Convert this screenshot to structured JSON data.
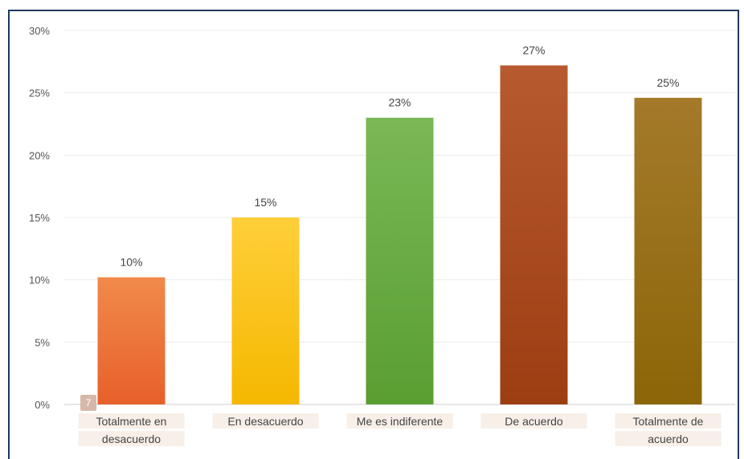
{
  "badge": "7",
  "chart_data": {
    "type": "bar",
    "title": "",
    "xlabel": "",
    "ylabel": "",
    "ylim": [
      0,
      30
    ],
    "yticks": [
      "0%",
      "5%",
      "10%",
      "15%",
      "20%",
      "25%",
      "30%"
    ],
    "grid": true,
    "categories": [
      [
        "Totalmente en",
        "desacuerdo"
      ],
      [
        "En desacuerdo"
      ],
      [
        "Me es indiferente"
      ],
      [
        "De acuerdo"
      ],
      [
        "Totalmente de",
        "acuerdo"
      ]
    ],
    "values": [
      10.2,
      15,
      23,
      27.2,
      24.6
    ],
    "data_labels": [
      "10%",
      "15%",
      "23%",
      "27%",
      "25%"
    ],
    "colors": [
      [
        "#f08a4b",
        "#e8602a"
      ],
      [
        "#ffcf3a",
        "#f5b800"
      ],
      [
        "#7ab855",
        "#5a9e32"
      ],
      [
        "#b85a30",
        "#9c3e12"
      ],
      [
        "#a47a2a",
        "#8c6508"
      ]
    ]
  }
}
